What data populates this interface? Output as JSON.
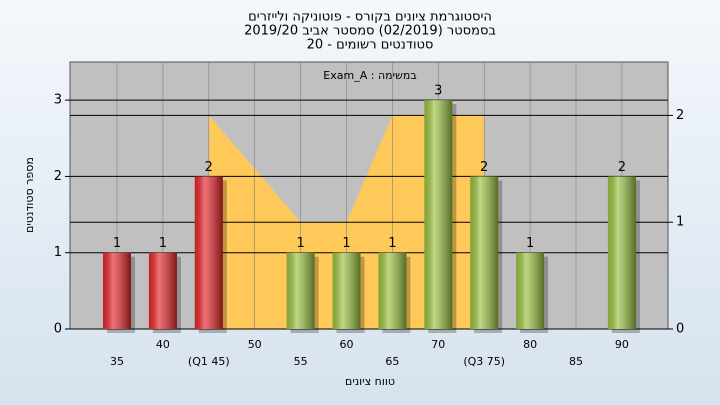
{
  "chart_data": {
    "type": "bar",
    "title": "היסטוגרמת ציונים בקורס - פוטוניקה ולייזרים",
    "subtitle": "בסמסטר  (02/2019)  סמסטר אביב 2019/20",
    "subtitle2": "סטודנטים רשומים - 20",
    "annotation": "במשימה : Exam_A",
    "x_label": "טווח ציונים",
    "y_label": "מספר סטודנטים",
    "categories": [
      "35",
      "40",
      "(Q1 45)",
      "50",
      "55",
      "60",
      "65",
      "70",
      "(Q3 75)",
      "80",
      "85",
      "90"
    ],
    "series": [
      {
        "type": "bar",
        "values": [
          1,
          1,
          2,
          0,
          1,
          1,
          1,
          3,
          2,
          1,
          0,
          2
        ],
        "colors": [
          "#e8262b",
          "#e8262b",
          "#e8262b",
          "#9cc341",
          "#9cc341",
          "#9cc341",
          "#9cc341",
          "#9cc341",
          "#9cc341",
          "#9cc341",
          "#9cc341",
          "#9cc341"
        ]
      },
      {
        "type": "area",
        "axis": "y2",
        "color": "#ffc95a",
        "values": [
          null,
          null,
          2,
          1.5,
          1,
          1,
          2,
          2,
          2,
          null,
          null,
          null
        ]
      }
    ],
    "ylim": [
      0,
      3.5
    ],
    "yticks": [
      0,
      1,
      2,
      3
    ],
    "y2lim": [
      0,
      2.5
    ],
    "y2ticks": [
      0,
      1,
      2
    ],
    "grid": true
  }
}
